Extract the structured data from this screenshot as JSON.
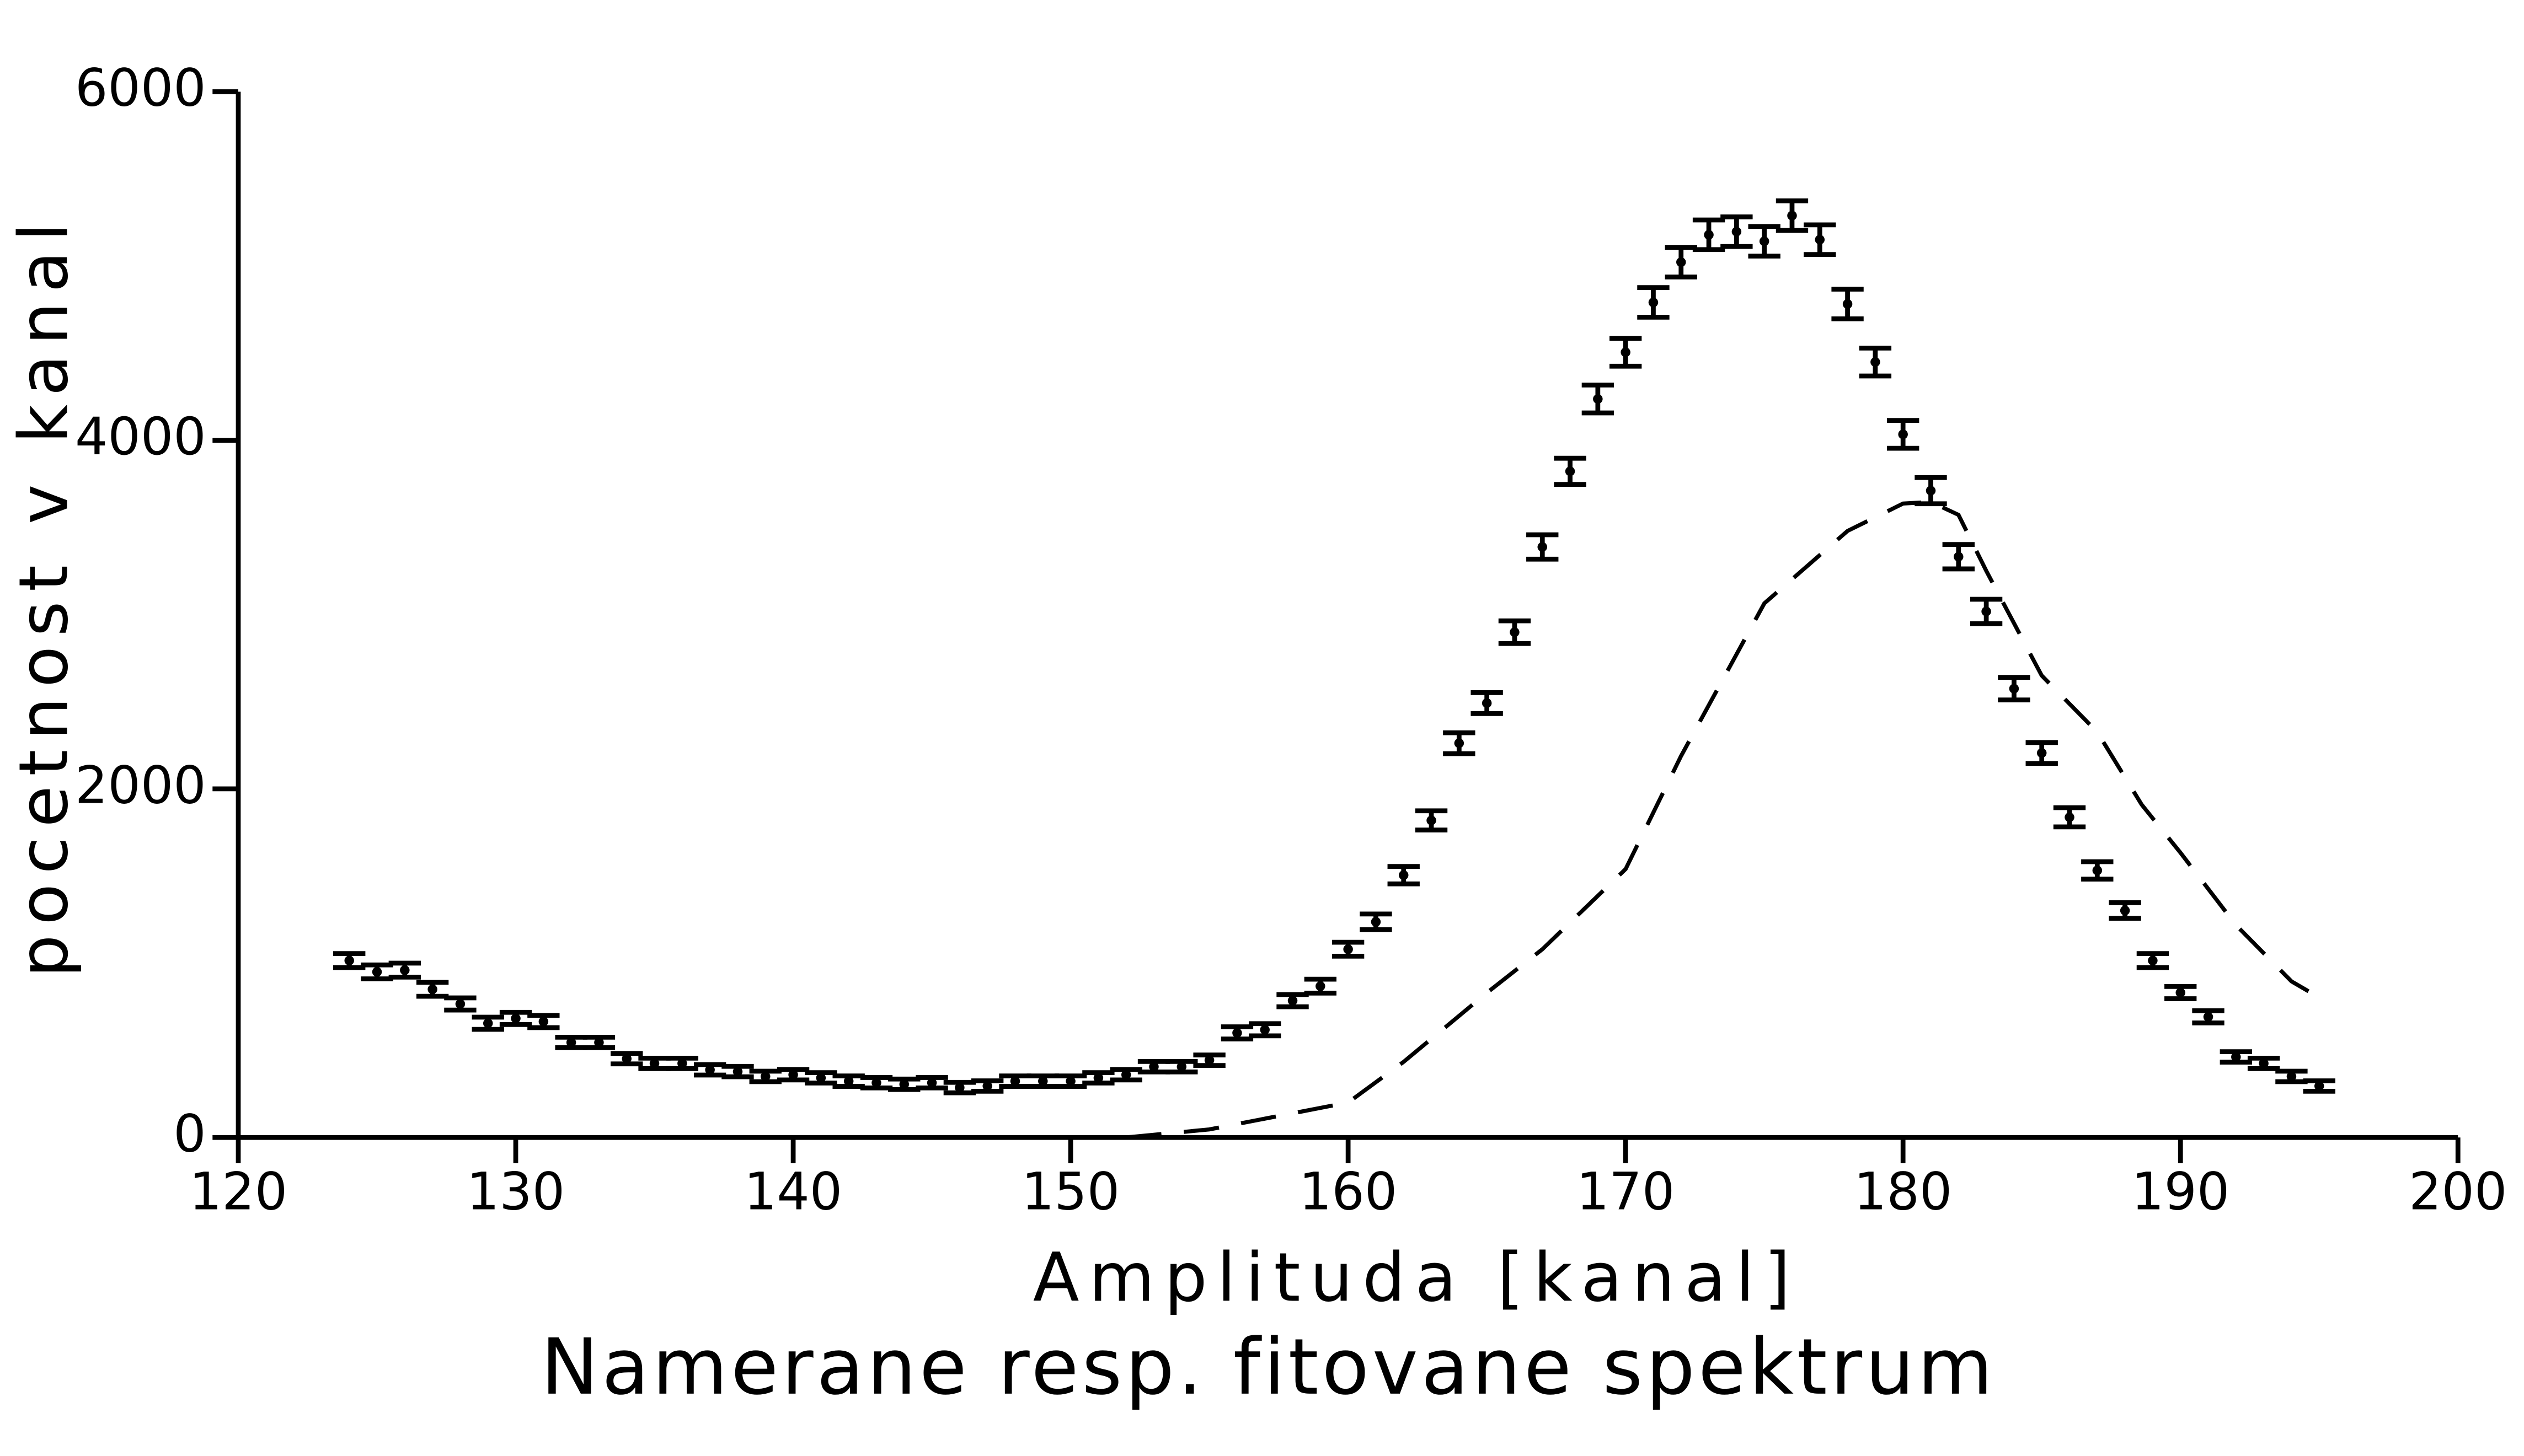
{
  "chart_data": {
    "type": "errorbar",
    "title": "Namerane resp. fitovane spektrum",
    "x_label": "Amplituda [kanal]",
    "y_label": "pocetnost v kanal",
    "xlim": [
      120,
      200
    ],
    "xticks": [
      120,
      130,
      140,
      150,
      160,
      170,
      180,
      190,
      200
    ],
    "ylim": [
      0,
      6000
    ],
    "yticks": [
      0,
      2000,
      4000,
      6000
    ],
    "series": [
      {
        "mode": "errorbar",
        "color": "#000000",
        "x": [
          124,
          125,
          126,
          127,
          128,
          129,
          130,
          131,
          132,
          133,
          134,
          135,
          136,
          137,
          138,
          139,
          140,
          141,
          142,
          143,
          144,
          145,
          146,
          147,
          148,
          149,
          150,
          151,
          152,
          153,
          154,
          155,
          156,
          157,
          158,
          159,
          160,
          161,
          162,
          163,
          164,
          165,
          166,
          167,
          168,
          169,
          170,
          171,
          172,
          173,
          174,
          175,
          176,
          177,
          178,
          179,
          180,
          181,
          182,
          183,
          184,
          185,
          186,
          187,
          188,
          189,
          190,
          191,
          192,
          193,
          194,
          195
        ],
        "values": [
          1015,
          950,
          960,
          850,
          766,
          655,
          683,
          665,
          545,
          545,
          452,
          425,
          425,
          388,
          378,
          350,
          360,
          342,
          323,
          314,
          305,
          314,
          286,
          295,
          323,
          323,
          323,
          342,
          360,
          406,
          406,
          443,
          600,
          618,
          785,
          868,
          1080,
          1237,
          1505,
          1819,
          2262,
          2492,
          2899,
          3388,
          3822,
          4237,
          4505,
          4791,
          5022,
          5179,
          5197,
          5142,
          5289,
          5151,
          4782,
          4449,
          4034,
          3711,
          3332,
          3018,
          2575,
          2206,
          1837,
          1532,
          1302,
          1015,
          831,
          692,
          462,
          425,
          350,
          295
        ],
        "errors": [
          40,
          40,
          40,
          40,
          35,
          35,
          35,
          35,
          30,
          30,
          30,
          30,
          30,
          30,
          30,
          30,
          30,
          30,
          30,
          30,
          30,
          30,
          30,
          30,
          30,
          30,
          30,
          30,
          30,
          30,
          30,
          30,
          35,
          35,
          35,
          40,
          40,
          45,
          50,
          55,
          60,
          60,
          65,
          70,
          75,
          80,
          80,
          85,
          85,
          85,
          85,
          85,
          85,
          85,
          85,
          80,
          80,
          75,
          70,
          70,
          65,
          60,
          55,
          50,
          45,
          40,
          35,
          35,
          30,
          30,
          30,
          30
        ]
      },
      {
        "mode": "line",
        "dash": true,
        "color": "#000000",
        "x": [
          152,
          155,
          160,
          162,
          165,
          167,
          170,
          172,
          175,
          178,
          180,
          181,
          182,
          183,
          185,
          187,
          188.6,
          190,
          192,
          194,
          195
        ],
        "values": [
          0,
          46,
          200,
          434,
          830,
          1080,
          1540,
          2188,
          3065,
          3480,
          3637,
          3646,
          3572,
          3250,
          2650,
          2326,
          1910,
          1634,
          1218,
          895,
          803
        ]
      }
    ]
  }
}
